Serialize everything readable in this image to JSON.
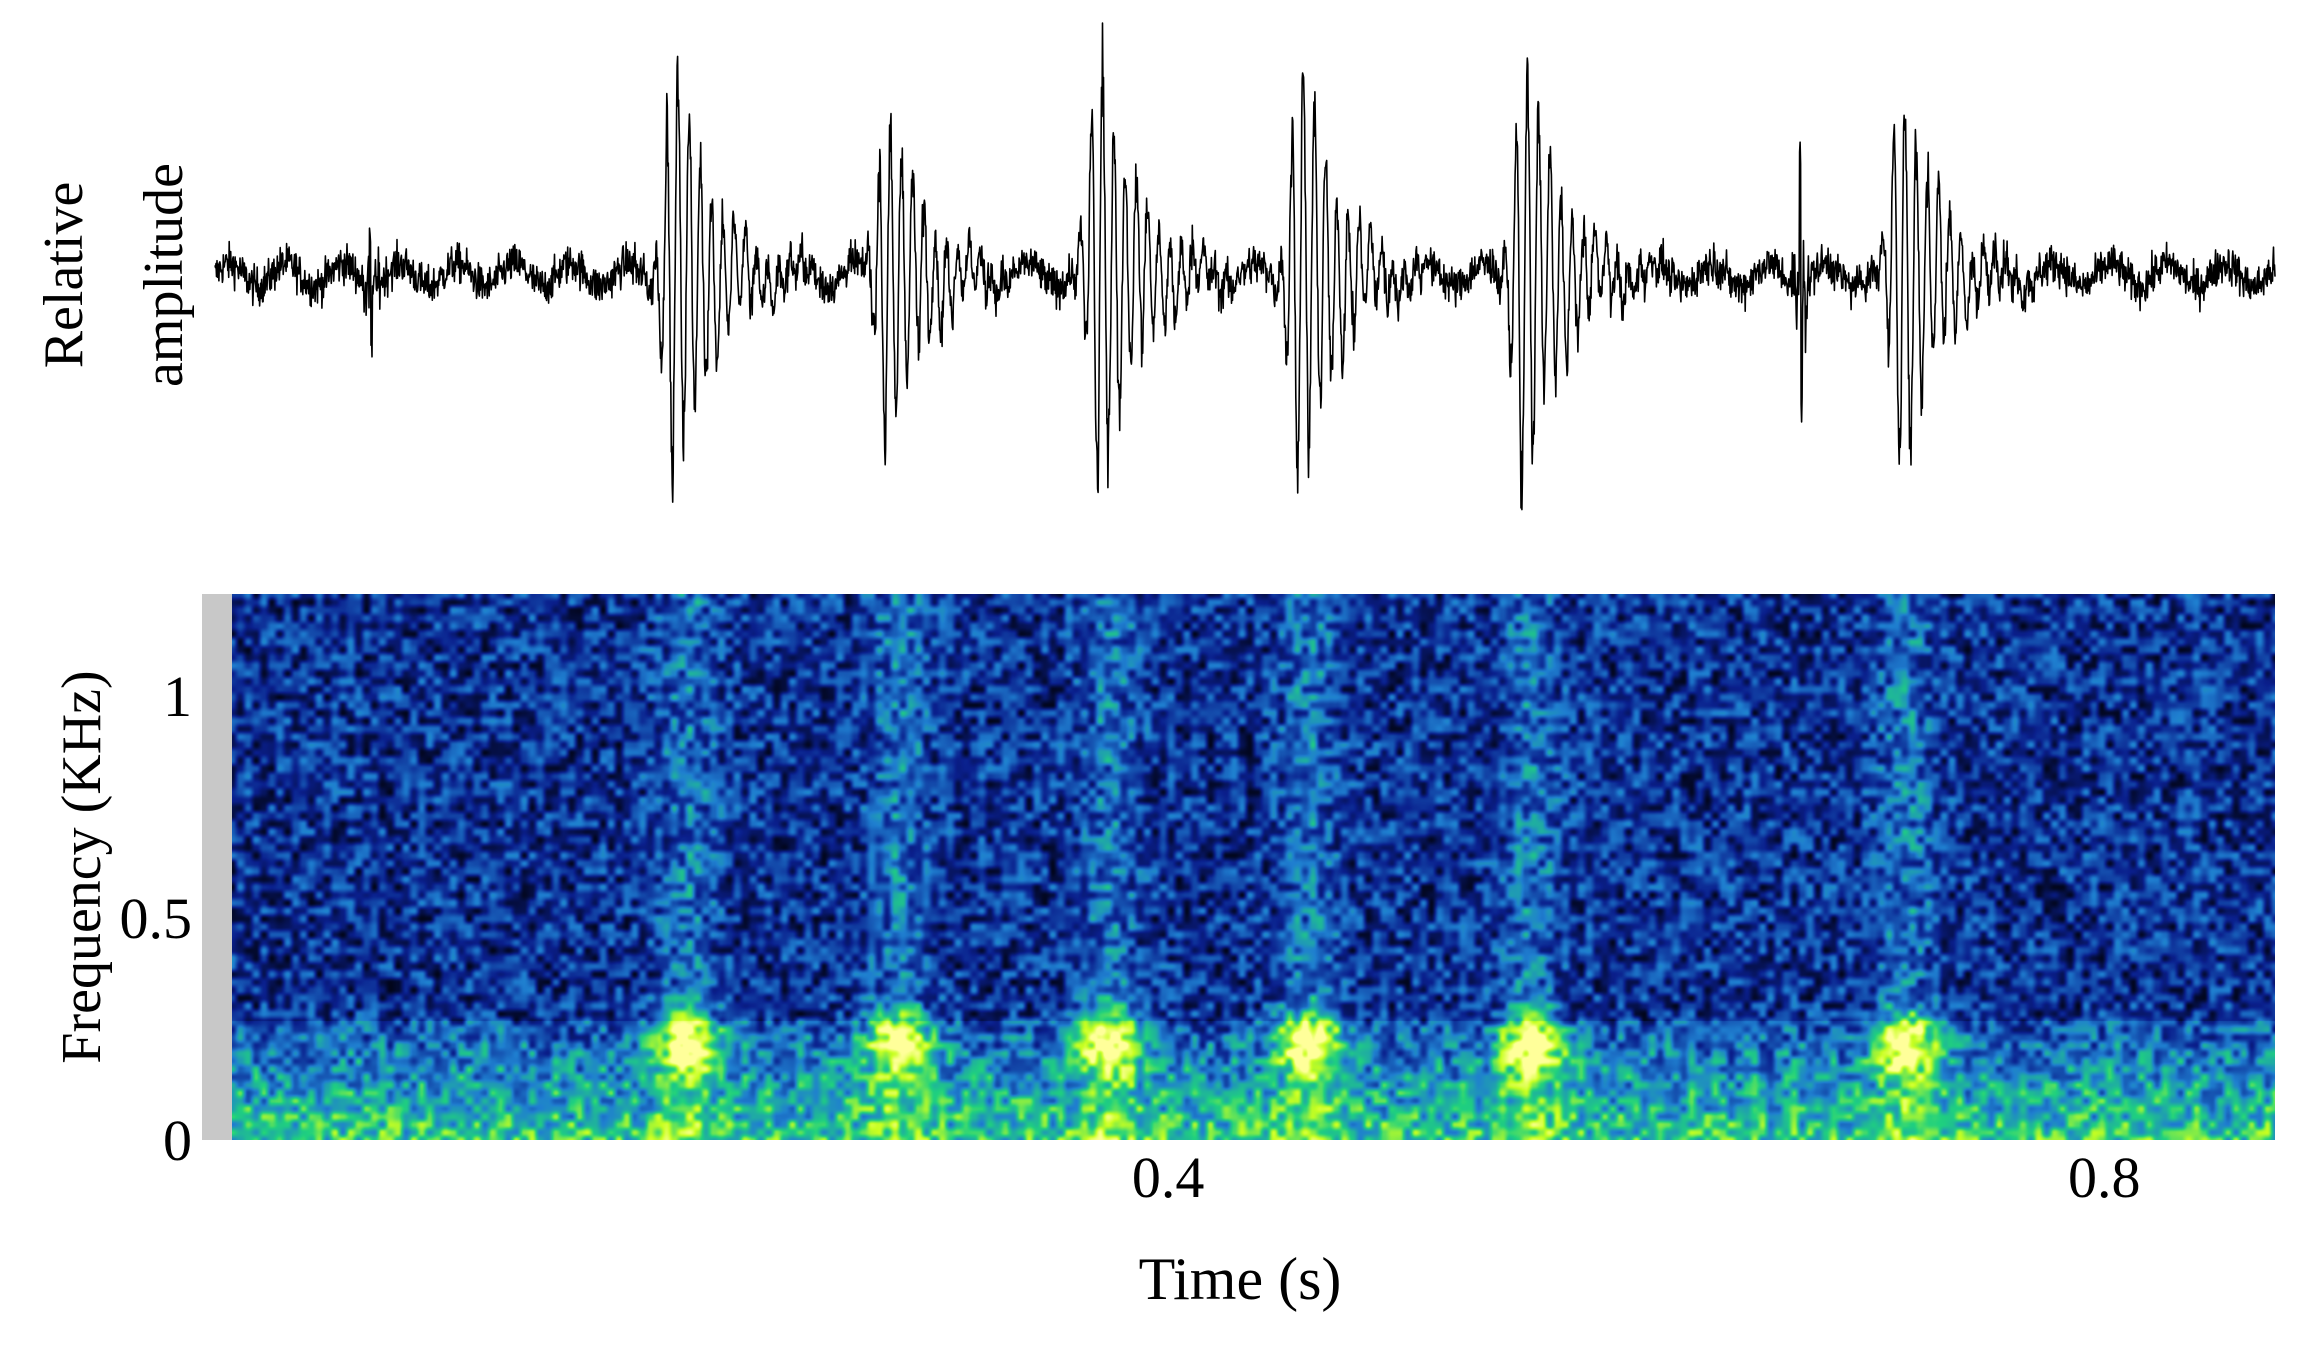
{
  "chart_data": [
    {
      "type": "line",
      "panel": "waveform",
      "ylabel_lines": [
        "Relative",
        "amplitude"
      ],
      "xlim": [
        0,
        0.873
      ],
      "ylim": [
        -1,
        1
      ],
      "grid": false,
      "line_color": "#000000",
      "bursts": [
        {
          "t": 0.195,
          "amplitude": 1.0
        },
        {
          "t": 0.285,
          "amplitude": 0.78
        },
        {
          "t": 0.375,
          "amplitude": 1.0
        },
        {
          "t": 0.46,
          "amplitude": 1.0
        },
        {
          "t": 0.555,
          "amplitude": 1.02
        },
        {
          "t": 0.715,
          "amplitude": 0.92
        }
      ],
      "transients": [
        {
          "t": 0.066,
          "amplitude": 0.25
        },
        {
          "t": 0.672,
          "amplitude": 0.55
        }
      ]
    },
    {
      "type": "heatmap",
      "panel": "spectrogram",
      "xlabel": "Time (s)",
      "ylabel": "Frequency (KHz)",
      "xlim": [
        0,
        0.873
      ],
      "ylim": [
        0,
        1.23
      ],
      "xticks": [
        {
          "value": 0.4,
          "label": "0.4"
        },
        {
          "value": 0.8,
          "label": "0.8"
        }
      ],
      "yticks": [
        {
          "value": 0,
          "label": "0"
        },
        {
          "value": 0.5,
          "label": "0.5"
        },
        {
          "value": 1,
          "label": "1"
        }
      ],
      "colormap": [
        "#000000",
        "#0a1f8c",
        "#1f7fd0",
        "#1fd07f",
        "#c8ff20",
        "#ffff9a"
      ],
      "energy_peaks": [
        {
          "t": 0.195,
          "f_khz": 0.22,
          "intensity": 1.0
        },
        {
          "t": 0.285,
          "f_khz": 0.22,
          "intensity": 0.95
        },
        {
          "t": 0.375,
          "f_khz": 0.22,
          "intensity": 1.0
        },
        {
          "t": 0.46,
          "f_khz": 0.22,
          "intensity": 1.0
        },
        {
          "t": 0.555,
          "f_khz": 0.22,
          "intensity": 0.97
        },
        {
          "t": 0.715,
          "f_khz": 0.22,
          "intensity": 0.95
        }
      ],
      "low_band_khz": [
        0,
        0.27
      ],
      "left_strip_color": "#c8c8c8"
    }
  ]
}
